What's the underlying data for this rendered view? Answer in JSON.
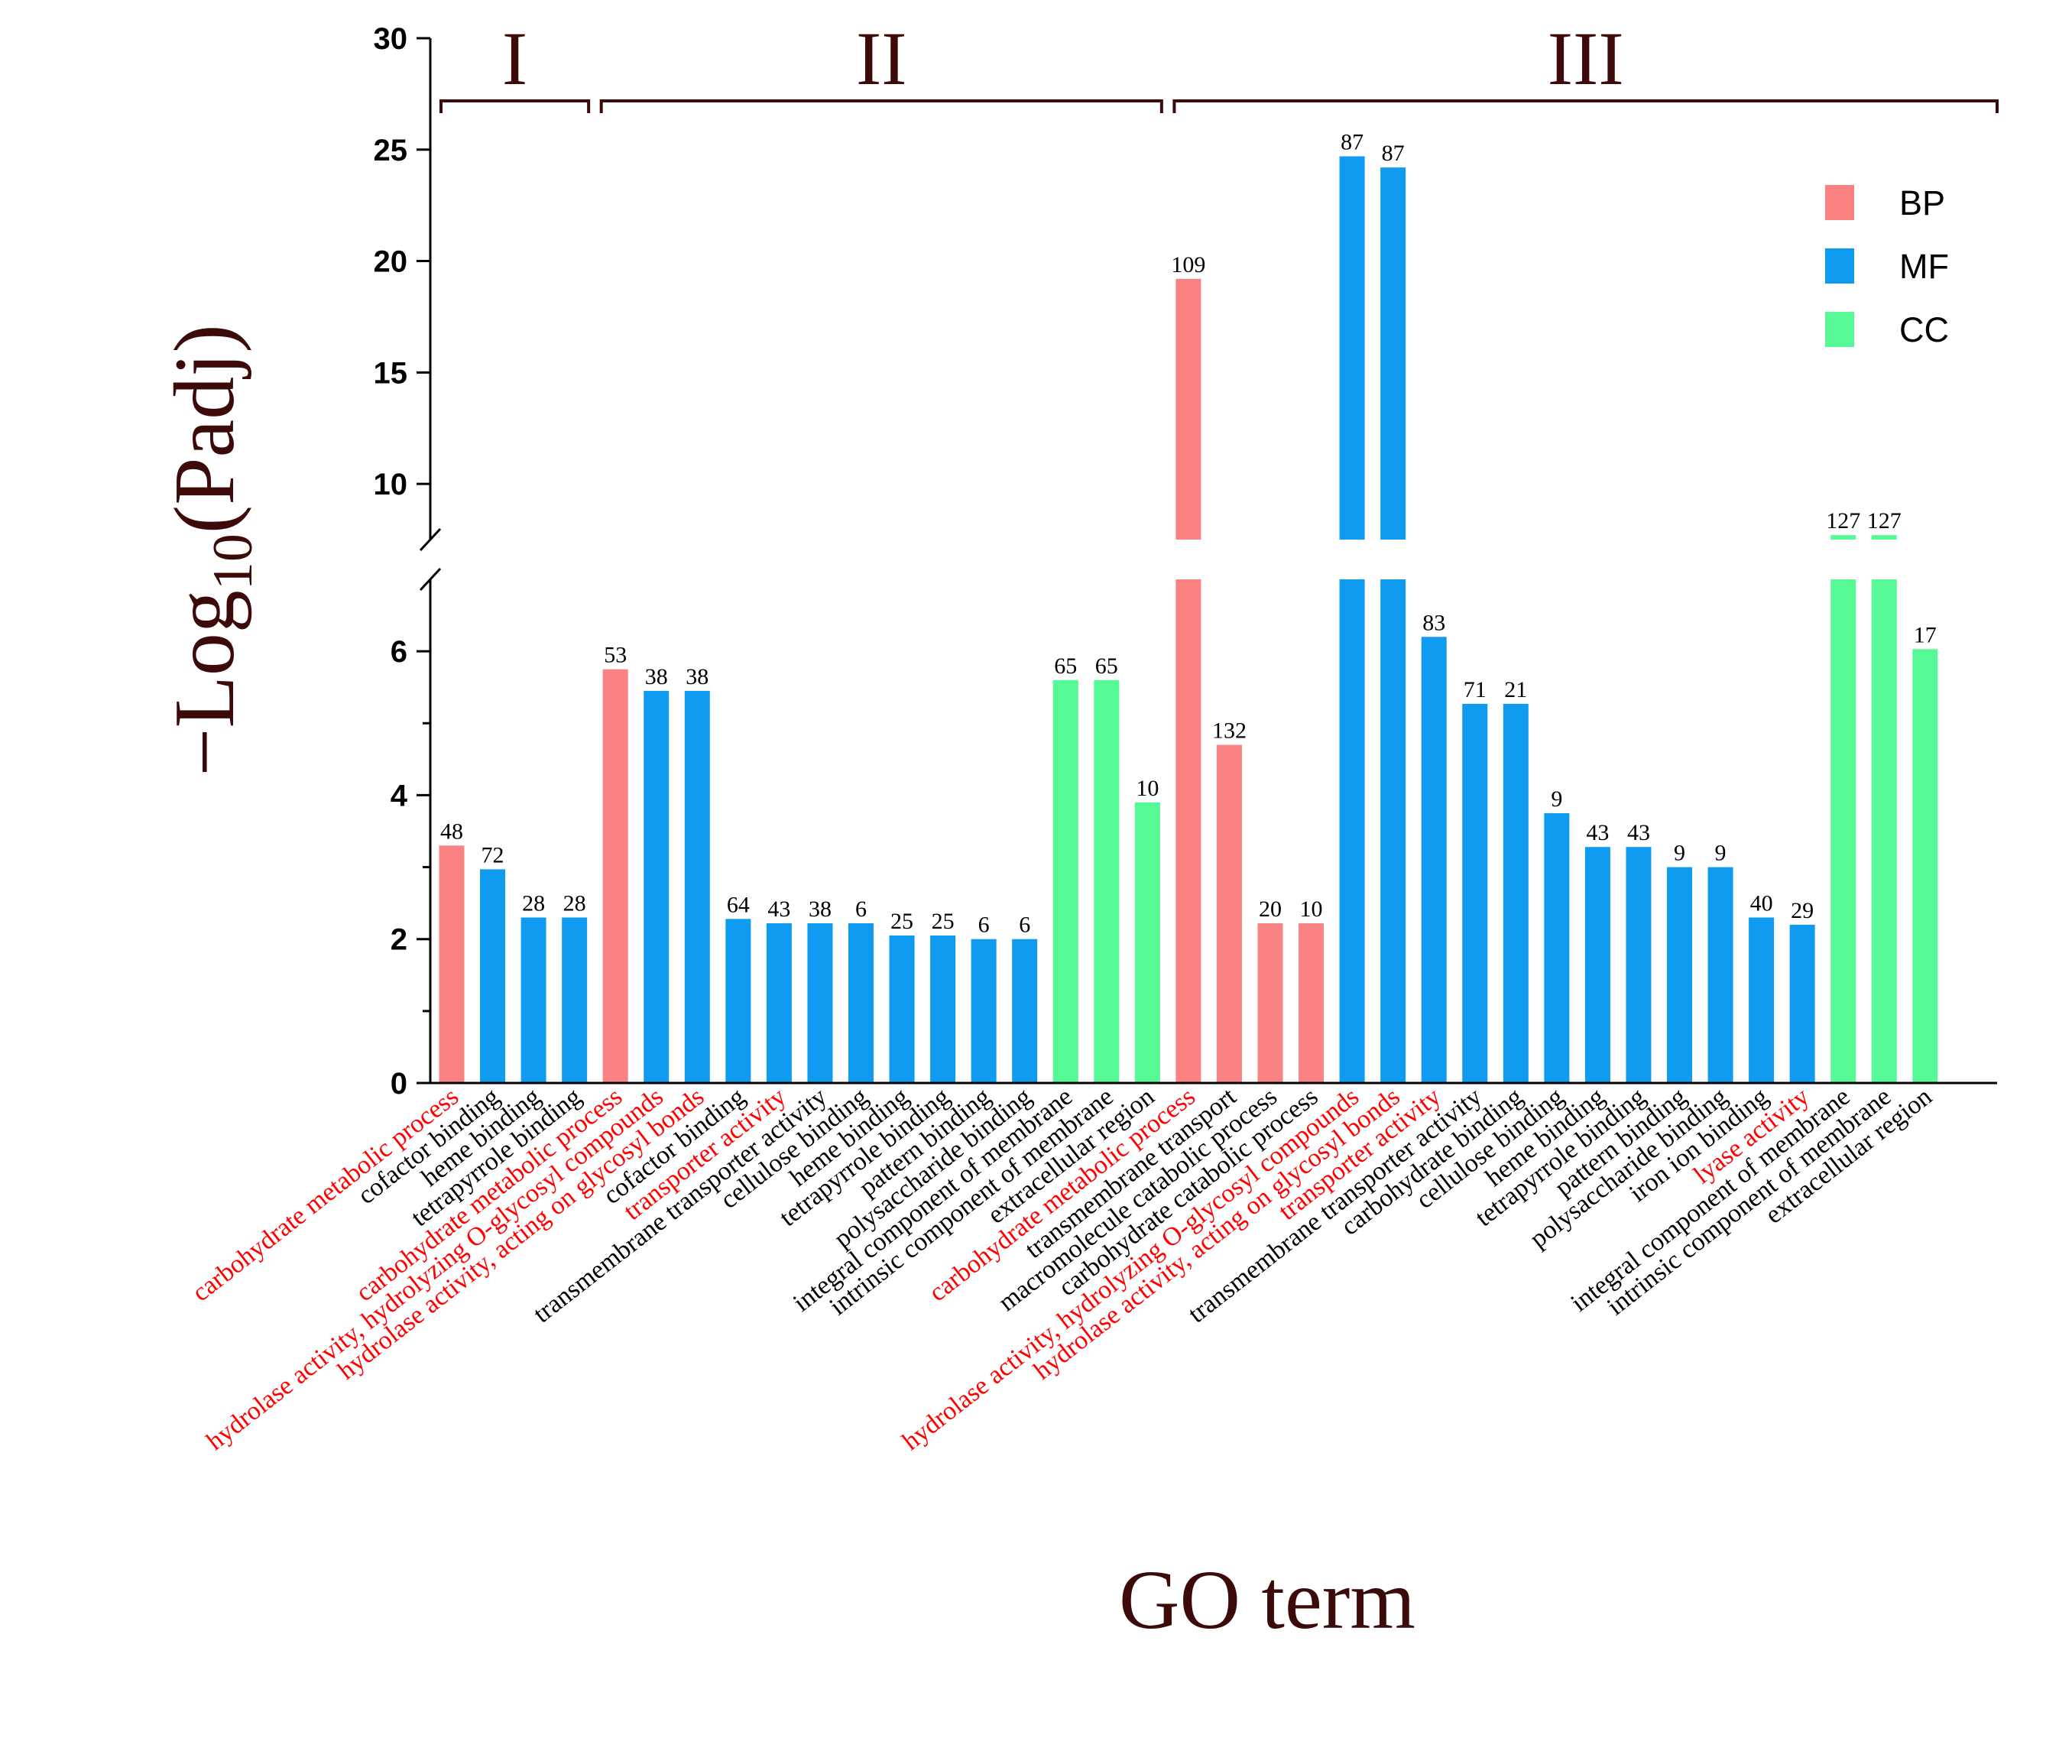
{
  "chart_data": {
    "type": "bar",
    "title": "",
    "xlabel": "GO term",
    "ylabel": {
      "prefix": "−Log",
      "subscript": "10",
      "suffix": "(Padj)"
    },
    "y_axis_break": [
      7,
      7.5
    ],
    "ylim_lower": [
      0,
      7
    ],
    "ylim_upper": [
      7.5,
      30
    ],
    "yticks_lower": [
      "0",
      "2",
      "4",
      "6"
    ],
    "yticks_upper": [
      "10",
      "15",
      "20",
      "25",
      "30"
    ],
    "legend": [
      {
        "key": "BP",
        "label": "BP",
        "color": "#fb8282"
      },
      {
        "key": "MF",
        "label": "MF",
        "color": "#0f9bf0"
      },
      {
        "key": "CC",
        "label": "CC",
        "color": "#57f996"
      }
    ],
    "groups": [
      {
        "label": "I",
        "first": 0,
        "last": 3
      },
      {
        "label": "II",
        "first": 4,
        "last": 17
      },
      {
        "label": "III",
        "first": 18,
        "last": 36
      }
    ],
    "highlight_color": "#ff0000",
    "bars": [
      {
        "term": "carbohydrate metabolic process",
        "category": "BP",
        "value": 3.3,
        "count": "48",
        "highlight": true
      },
      {
        "term": "cofactor binding",
        "category": "MF",
        "value": 2.97,
        "count": "72",
        "highlight": false
      },
      {
        "term": "heme binding",
        "category": "MF",
        "value": 2.3,
        "count": "28",
        "highlight": false
      },
      {
        "term": "tetrapyrrole binding",
        "category": "MF",
        "value": 2.3,
        "count": "28",
        "highlight": false
      },
      {
        "term": "carbohydrate metabolic process",
        "category": "BP",
        "value": 5.75,
        "count": "53",
        "highlight": true
      },
      {
        "term": "hydrolase activity, hydrolyzing O-glycosyl compounds",
        "category": "MF",
        "value": 5.45,
        "count": "38",
        "highlight": true
      },
      {
        "term": "hydrolase activity, acting on glycosyl bonds",
        "category": "MF",
        "value": 5.45,
        "count": "38",
        "highlight": true
      },
      {
        "term": "cofactor binding",
        "category": "MF",
        "value": 2.28,
        "count": "64",
        "highlight": false
      },
      {
        "term": "transporter activity",
        "category": "MF",
        "value": 2.22,
        "count": "43",
        "highlight": true
      },
      {
        "term": "transmembrane transporter activity",
        "category": "MF",
        "value": 2.22,
        "count": "38",
        "highlight": false
      },
      {
        "term": "cellulose binding",
        "category": "MF",
        "value": 2.22,
        "count": "6",
        "highlight": false
      },
      {
        "term": "heme binding",
        "category": "MF",
        "value": 2.05,
        "count": "25",
        "highlight": false
      },
      {
        "term": "tetrapyrrole binding",
        "category": "MF",
        "value": 2.05,
        "count": "25",
        "highlight": false
      },
      {
        "term": "pattern binding",
        "category": "MF",
        "value": 2.0,
        "count": "6",
        "highlight": false
      },
      {
        "term": "polysaccharide binding",
        "category": "MF",
        "value": 2.0,
        "count": "6",
        "highlight": false
      },
      {
        "term": "integral component of membrane",
        "category": "CC",
        "value": 5.6,
        "count": "65",
        "highlight": false
      },
      {
        "term": "intrinsic component of membrane",
        "category": "CC",
        "value": 5.6,
        "count": "65",
        "highlight": false
      },
      {
        "term": "extracellular region",
        "category": "CC",
        "value": 3.9,
        "count": "10",
        "highlight": false
      },
      {
        "term": "carbohydrate metabolic process",
        "category": "BP",
        "value": 19.2,
        "count": "109",
        "highlight": true
      },
      {
        "term": "transmembrane transport",
        "category": "BP",
        "value": 4.7,
        "count": "132",
        "highlight": false
      },
      {
        "term": "macromolecule catabolic process",
        "category": "BP",
        "value": 2.22,
        "count": "20",
        "highlight": false
      },
      {
        "term": "carbohydrate catabolic process",
        "category": "BP",
        "value": 2.22,
        "count": "10",
        "highlight": false
      },
      {
        "term": "hydrolase activity, hydrolyzing O-glycosyl compounds",
        "category": "MF",
        "value": 24.7,
        "count": "87",
        "highlight": true
      },
      {
        "term": "hydrolase activity, acting on glycosyl bonds",
        "category": "MF",
        "value": 24.2,
        "count": "87",
        "highlight": true
      },
      {
        "term": "transporter activity",
        "category": "MF",
        "value": 6.2,
        "count": "83",
        "highlight": true
      },
      {
        "term": "transmembrane transporter activity",
        "category": "MF",
        "value": 5.27,
        "count": "71",
        "highlight": false
      },
      {
        "term": "carbohydrate binding",
        "category": "MF",
        "value": 5.27,
        "count": "21",
        "highlight": false
      },
      {
        "term": "cellulose binding",
        "category": "MF",
        "value": 3.75,
        "count": "9",
        "highlight": false
      },
      {
        "term": "heme binding",
        "category": "MF",
        "value": 3.28,
        "count": "43",
        "highlight": false
      },
      {
        "term": "tetrapyrrole binding",
        "category": "MF",
        "value": 3.28,
        "count": "43",
        "highlight": false
      },
      {
        "term": "pattern binding",
        "category": "MF",
        "value": 3.0,
        "count": "9",
        "highlight": false
      },
      {
        "term": "polysaccharide binding",
        "category": "MF",
        "value": 3.0,
        "count": "9",
        "highlight": false
      },
      {
        "term": "iron ion binding",
        "category": "MF",
        "value": 2.3,
        "count": "40",
        "highlight": false
      },
      {
        "term": "lyase activity",
        "category": "MF",
        "value": 2.2,
        "count": "29",
        "highlight": true
      },
      {
        "term": "integral component of membrane",
        "category": "CC",
        "value": 7.7,
        "count": "127",
        "highlight": false
      },
      {
        "term": "intrinsic component of membrane",
        "category": "CC",
        "value": 7.7,
        "count": "127",
        "highlight": false
      },
      {
        "term": "extracellular region",
        "category": "CC",
        "value": 6.03,
        "count": "17",
        "highlight": false
      }
    ]
  }
}
